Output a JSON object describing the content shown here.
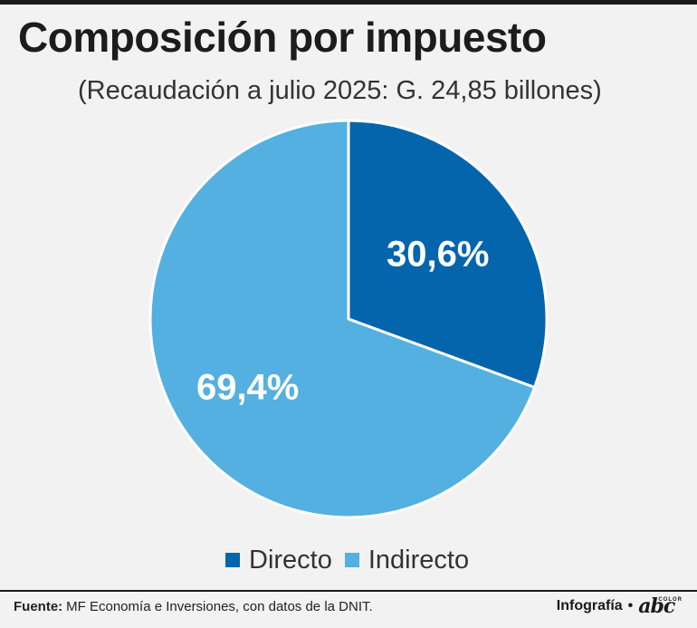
{
  "header": {
    "title": "Composición por impuesto",
    "subtitle": "(Recaudación a julio 2025: G. 24,85 billones)"
  },
  "chart_data": {
    "type": "pie",
    "title": "Composición por impuesto",
    "subtitle": "(Recaudación a julio 2025: G. 24,85 billones)",
    "slices": [
      {
        "name": "Directo",
        "value": 30.6,
        "label": "30,6%",
        "color": "#0465ad"
      },
      {
        "name": "Indirecto",
        "value": 69.4,
        "label": "69,4%",
        "color": "#54b0e0"
      }
    ],
    "legend": {
      "placement": "bottom"
    },
    "start": "12 o'clock, clockwise"
  },
  "legend": {
    "items": [
      {
        "label": "Directo",
        "color": "#0465ad"
      },
      {
        "label": "Indirecto",
        "color": "#54b0e0"
      }
    ]
  },
  "footer": {
    "source_label": "Fuente:",
    "source_text": "MF Economía e Inversiones, con datos de la DNIT.",
    "credit": "Infografía",
    "bullet": "•",
    "logo_text": "abc",
    "logo_sup": "COLOR"
  }
}
